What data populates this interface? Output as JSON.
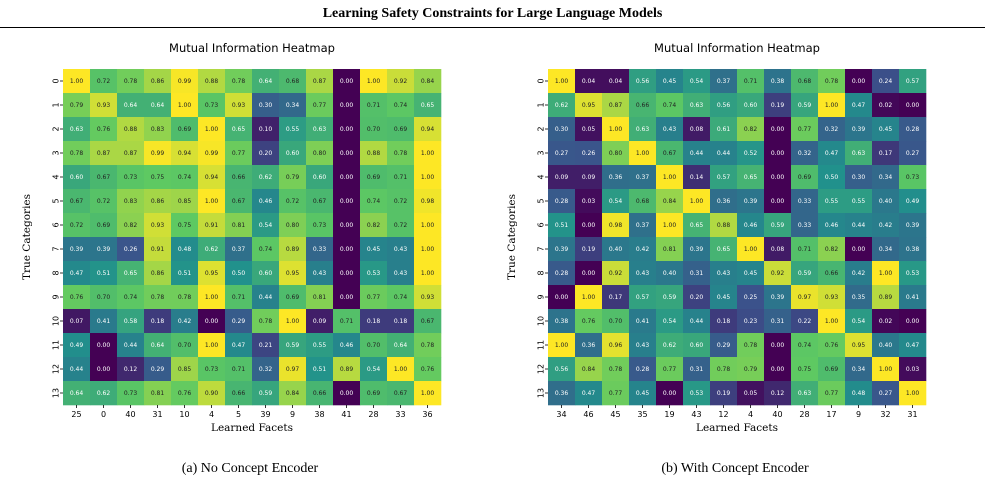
{
  "figure_title": "Learning Safety Constraints for Large Language Models",
  "colormap": [
    "#440154",
    "#3b528b",
    "#21918c",
    "#5ec962",
    "#fde725"
  ],
  "chart_data": [
    {
      "type": "heatmap",
      "title": "Mutual Information Heatmap",
      "xlabel": "Learned Facets",
      "ylabel": "True Categories",
      "caption": "(a) No Concept Encoder",
      "x": [
        "25",
        "0",
        "40",
        "31",
        "10",
        "4",
        "5",
        "39",
        "9",
        "38",
        "41",
        "28",
        "33",
        "36"
      ],
      "y": [
        "0",
        "1",
        "2",
        "3",
        "4",
        "5",
        "6",
        "7",
        "8",
        "9",
        "10",
        "11",
        "12",
        "13"
      ],
      "value_range": [
        0,
        1
      ],
      "values": [
        [
          1.0,
          0.72,
          0.78,
          0.86,
          0.99,
          0.88,
          0.78,
          0.64,
          0.68,
          0.87,
          0.0,
          1.0,
          0.92,
          0.84
        ],
        [
          0.79,
          0.93,
          0.64,
          0.64,
          1.0,
          0.73,
          0.93,
          0.3,
          0.34,
          0.77,
          0.0,
          0.71,
          0.74,
          0.65
        ],
        [
          0.63,
          0.76,
          0.88,
          0.83,
          0.69,
          1.0,
          0.65,
          0.1,
          0.55,
          0.63,
          0.0,
          0.7,
          0.69,
          0.94
        ],
        [
          0.78,
          0.87,
          0.87,
          0.99,
          0.94,
          0.99,
          0.77,
          0.2,
          0.6,
          0.8,
          0.0,
          0.88,
          0.78,
          1.0
        ],
        [
          0.6,
          0.67,
          0.73,
          0.75,
          0.74,
          0.94,
          0.66,
          0.62,
          0.79,
          0.6,
          0.0,
          0.69,
          0.71,
          1.0
        ],
        [
          0.67,
          0.72,
          0.83,
          0.86,
          0.85,
          1.0,
          0.67,
          0.46,
          0.72,
          0.67,
          0.0,
          0.74,
          0.72,
          0.98
        ],
        [
          0.72,
          0.69,
          0.82,
          0.93,
          0.75,
          0.91,
          0.81,
          0.54,
          0.8,
          0.73,
          0.0,
          0.82,
          0.72,
          1.0
        ],
        [
          0.39,
          0.39,
          0.26,
          0.91,
          0.48,
          0.62,
          0.37,
          0.74,
          0.89,
          0.33,
          0.0,
          0.45,
          0.43,
          1.0
        ],
        [
          0.47,
          0.51,
          0.65,
          0.86,
          0.51,
          0.95,
          0.5,
          0.6,
          0.95,
          0.43,
          0.0,
          0.53,
          0.43,
          1.0
        ],
        [
          0.76,
          0.7,
          0.74,
          0.78,
          0.78,
          1.0,
          0.71,
          0.44,
          0.69,
          0.81,
          0.0,
          0.77,
          0.74,
          0.93
        ],
        [
          0.07,
          0.41,
          0.58,
          0.18,
          0.42,
          0.0,
          0.29,
          0.78,
          1.0,
          0.09,
          0.71,
          0.18,
          0.18,
          0.67
        ],
        [
          0.49,
          0.0,
          0.44,
          0.64,
          0.7,
          1.0,
          0.47,
          0.21,
          0.59,
          0.55,
          0.46,
          0.7,
          0.64,
          0.78
        ],
        [
          0.44,
          0.0,
          0.12,
          0.29,
          0.85,
          0.73,
          0.71,
          0.32,
          0.97,
          0.51,
          0.89,
          0.54,
          1.0,
          0.76
        ],
        [
          0.64,
          0.62,
          0.73,
          0.81,
          0.76,
          0.9,
          0.66,
          0.59,
          0.84,
          0.66,
          0.0,
          0.69,
          0.67,
          1.0
        ]
      ]
    },
    {
      "type": "heatmap",
      "title": "Mutual Information Heatmap",
      "xlabel": "Learned Facets",
      "ylabel": "True Categories",
      "caption": "(b) With Concept Encoder",
      "x": [
        "34",
        "46",
        "45",
        "35",
        "19",
        "43",
        "12",
        "4",
        "40",
        "28",
        "17",
        "9",
        "32",
        "31"
      ],
      "y": [
        "0",
        "1",
        "2",
        "3",
        "4",
        "5",
        "6",
        "7",
        "8",
        "9",
        "10",
        "11",
        "12",
        "13"
      ],
      "value_range": [
        0,
        1
      ],
      "values": [
        [
          1.0,
          0.04,
          0.04,
          0.56,
          0.45,
          0.54,
          0.37,
          0.71,
          0.38,
          0.68,
          0.78,
          0.0,
          0.24,
          0.57
        ],
        [
          0.62,
          0.95,
          0.87,
          0.66,
          0.74,
          0.63,
          0.56,
          0.6,
          0.19,
          0.59,
          1.0,
          0.47,
          0.02,
          0.0
        ],
        [
          0.3,
          0.05,
          1.0,
          0.63,
          0.43,
          0.08,
          0.61,
          0.82,
          0.0,
          0.77,
          0.32,
          0.39,
          0.45,
          0.28
        ],
        [
          0.27,
          0.26,
          0.8,
          1.0,
          0.67,
          0.44,
          0.44,
          0.52,
          0.0,
          0.32,
          0.47,
          0.63,
          0.17,
          0.27
        ],
        [
          0.09,
          0.09,
          0.36,
          0.37,
          1.0,
          0.14,
          0.57,
          0.65,
          0.0,
          0.69,
          0.5,
          0.3,
          0.34,
          0.73
        ],
        [
          0.28,
          0.03,
          0.54,
          0.68,
          0.84,
          1.0,
          0.36,
          0.39,
          0.0,
          0.33,
          0.55,
          0.55,
          0.4,
          0.49
        ],
        [
          0.51,
          0.0,
          0.98,
          0.37,
          1.0,
          0.65,
          0.88,
          0.46,
          0.59,
          0.33,
          0.46,
          0.44,
          0.42,
          0.39
        ],
        [
          0.39,
          0.19,
          0.4,
          0.42,
          0.81,
          0.39,
          0.65,
          1.0,
          0.08,
          0.71,
          0.82,
          0.0,
          0.34,
          0.38
        ],
        [
          0.28,
          0.0,
          0.92,
          0.43,
          0.4,
          0.31,
          0.43,
          0.45,
          0.92,
          0.59,
          0.66,
          0.42,
          1.0,
          0.53
        ],
        [
          0.0,
          1.0,
          0.17,
          0.57,
          0.59,
          0.2,
          0.45,
          0.25,
          0.39,
          0.97,
          0.93,
          0.35,
          0.89,
          0.41
        ],
        [
          0.38,
          0.76,
          0.7,
          0.41,
          0.54,
          0.44,
          0.18,
          0.23,
          0.31,
          0.22,
          1.0,
          0.54,
          0.02,
          0.0
        ],
        [
          1.0,
          0.36,
          0.96,
          0.43,
          0.62,
          0.6,
          0.29,
          0.78,
          0.0,
          0.74,
          0.76,
          0.95,
          0.4,
          0.47
        ],
        [
          0.56,
          0.84,
          0.78,
          0.28,
          0.77,
          0.31,
          0.78,
          0.79,
          0.0,
          0.75,
          0.69,
          0.34,
          1.0,
          0.03
        ],
        [
          0.36,
          0.47,
          0.77,
          0.45,
          0.0,
          0.53,
          0.19,
          0.05,
          0.12,
          0.63,
          0.77,
          0.48,
          0.27,
          1.0
        ]
      ]
    }
  ]
}
